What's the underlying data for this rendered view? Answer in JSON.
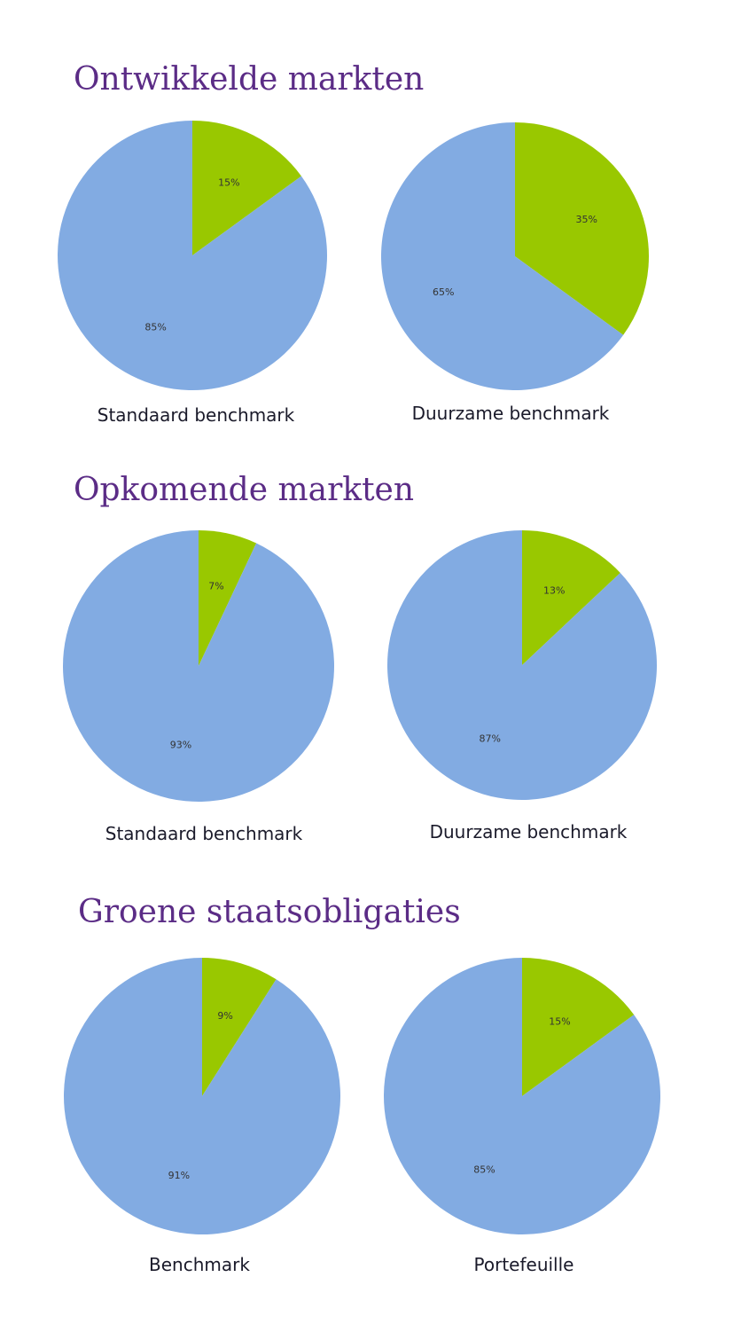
{
  "colors": {
    "title": "#5b2c86",
    "sustainable_share": "#99c800",
    "remaining_share": "#82abe2",
    "caption": "#1a1a2a",
    "label": "#333333"
  },
  "sections": [
    {
      "title": "Ontwikkelde markten"
    },
    {
      "title": "Opkomende markten"
    },
    {
      "title": "Groene staatsobligaties"
    }
  ],
  "chart_data": [
    {
      "type": "pie",
      "title": "",
      "caption": "Standaard benchmark",
      "values": [
        15,
        85
      ],
      "labels": [
        "15%",
        "85%"
      ]
    },
    {
      "type": "pie",
      "title": "",
      "caption": "Duurzame benchmark",
      "values": [
        35,
        65
      ],
      "labels": [
        "35%",
        "65%"
      ]
    },
    {
      "type": "pie",
      "title": "",
      "caption": "Standaard benchmark",
      "values": [
        7,
        93
      ],
      "labels": [
        "7%",
        "93%"
      ]
    },
    {
      "type": "pie",
      "title": "",
      "caption": "Duurzame benchmark",
      "values": [
        13,
        87
      ],
      "labels": [
        "13%",
        "87%"
      ]
    },
    {
      "type": "pie",
      "title": "",
      "caption": "Benchmark",
      "values": [
        9,
        91
      ],
      "labels": [
        "9%",
        "91%"
      ]
    },
    {
      "type": "pie",
      "title": "",
      "caption": "Portefeuille",
      "values": [
        15,
        85
      ],
      "labels": [
        "15%",
        "85%"
      ]
    }
  ]
}
